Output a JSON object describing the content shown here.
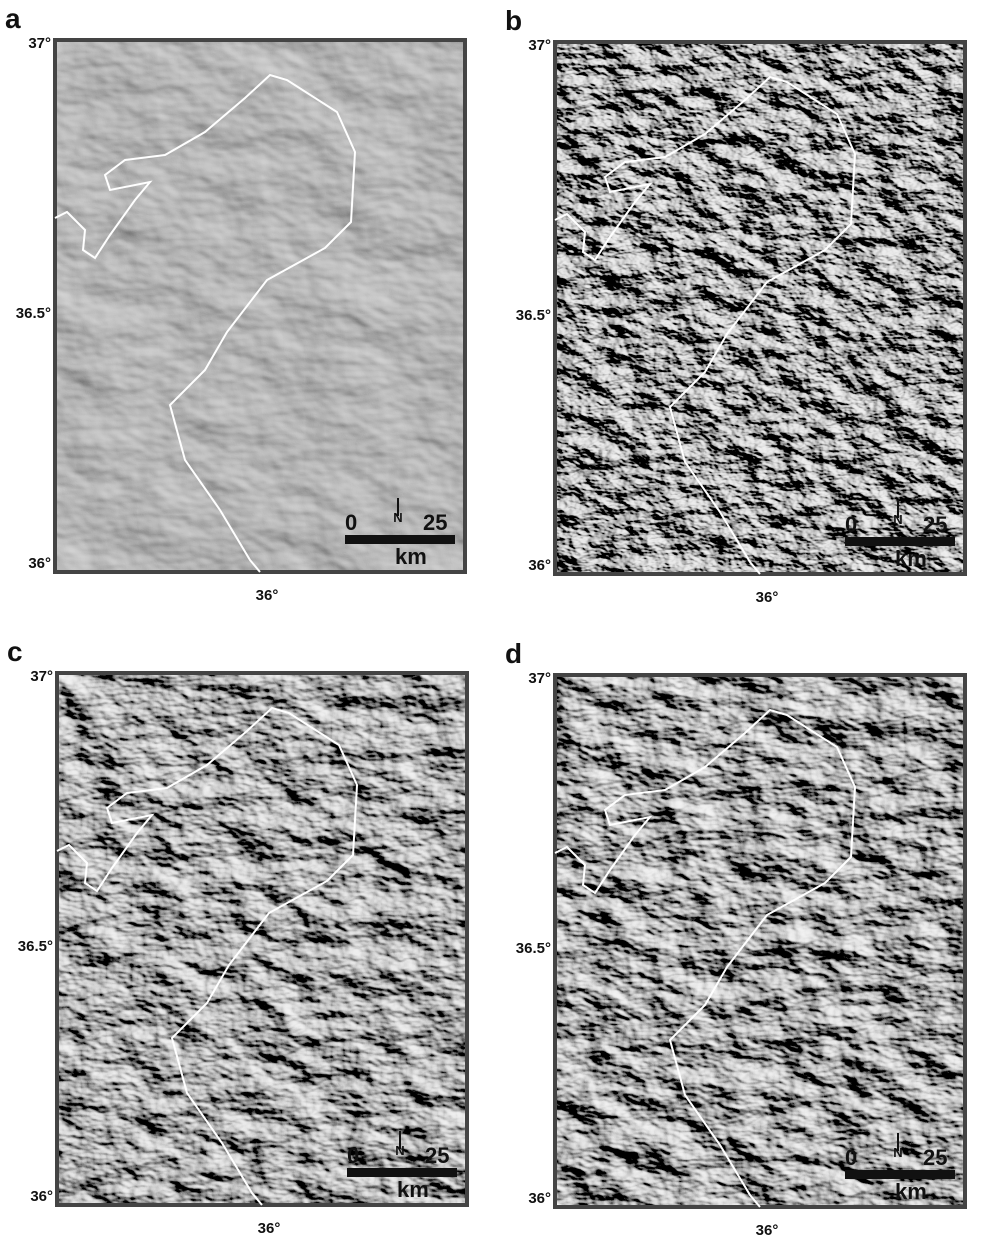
{
  "panels": [
    {
      "label": "a",
      "lat_labels": [
        "37°",
        "36.5°",
        "36°"
      ],
      "lon_label": "36°",
      "scale": {
        "start": "0",
        "end": "25",
        "unit": "km"
      },
      "north": "N"
    },
    {
      "label": "b",
      "lat_labels": [
        "37°",
        "36.5°",
        "36°"
      ],
      "lon_label": "36°",
      "scale": {
        "start": "0",
        "end": "25",
        "unit": "km"
      },
      "north": "N"
    },
    {
      "label": "c",
      "lat_labels": [
        "37°",
        "36.5°",
        "36°"
      ],
      "lon_label": "36°",
      "scale": {
        "start": "0",
        "end": "25",
        "unit": "km"
      },
      "north": "N"
    },
    {
      "label": "d",
      "lat_labels": [
        "37°",
        "36.5°",
        "36°"
      ],
      "lon_label": "36°",
      "scale": {
        "start": "0",
        "end": "25",
        "unit": "km"
      },
      "north": "N"
    }
  ]
}
